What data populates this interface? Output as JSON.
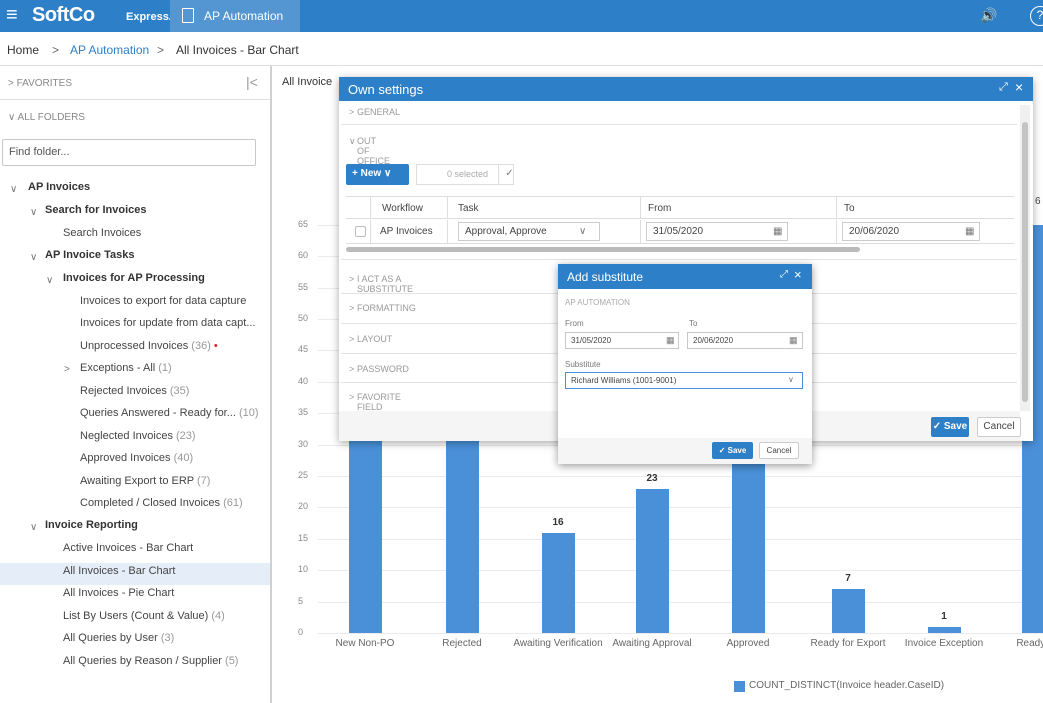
{
  "topbar": {
    "brand": "SoftCo",
    "brand_sub": "ExpressAP",
    "tab_label": "AP Automation",
    "hamburger_glyph": "≡",
    "speaker_glyph": "🔊",
    "help_glyph": "?"
  },
  "breadcrumb": [
    "Home",
    ">",
    "AP Automation",
    ">",
    "All Invoices - Bar Chart"
  ],
  "sidebar": {
    "favorites": "FAVORITES",
    "collapse_glyph": "|<",
    "all_folders": "ALL FOLDERS",
    "find_placeholder": "Find folder...",
    "tree": [
      {
        "label": "AP Invoices",
        "bold": true
      },
      {
        "label": "Search for Invoices",
        "bold": true
      },
      {
        "label": "Search Invoices"
      },
      {
        "label": "AP Invoice Tasks",
        "bold": true
      },
      {
        "label": "Invoices for AP Processing",
        "bold": true
      },
      {
        "label": "Invoices to export for data capture"
      },
      {
        "label": "Invoices for update from data capt..."
      },
      {
        "label": "Unprocessed Invoices",
        "count": "(36)",
        "dot": "•"
      },
      {
        "label": "Exceptions - All",
        "count": "(1)"
      },
      {
        "label": "Rejected Invoices",
        "count": "(35)"
      },
      {
        "label": "Queries Answered - Ready for...",
        "count": "(10)"
      },
      {
        "label": "Neglected Invoices",
        "count": "(23)"
      },
      {
        "label": "Approved Invoices",
        "count": "(40)"
      },
      {
        "label": "Awaiting Export to ERP",
        "count": "(7)"
      },
      {
        "label": "Completed / Closed Invoices",
        "count": "(61)"
      },
      {
        "label": "Invoice Reporting",
        "bold": true
      },
      {
        "label": "Active Invoices - Bar Chart"
      },
      {
        "label": "All Invoices - Bar Chart"
      },
      {
        "label": "All Invoices - Pie Chart"
      },
      {
        "label": "List By Users (Count & Value)",
        "count": "(4)"
      },
      {
        "label": "All Queries by User",
        "count": "(3)"
      },
      {
        "label": "All Queries by Reason / Supplier",
        "count": "(5)"
      }
    ]
  },
  "main_tab": "All Invoice",
  "chart_data": {
    "type": "bar",
    "categories": [
      "New Non-PO",
      "Rejected",
      "Awaiting Verification",
      "Awaiting Approval",
      "Approved",
      "Ready for Export",
      "Invoice Exception",
      "Ready for"
    ],
    "values": [
      null,
      null,
      16,
      23,
      null,
      7,
      1,
      null
    ],
    "visible_labels": [
      "",
      "",
      "16",
      "23",
      "",
      "7",
      "1",
      ""
    ],
    "yticks": [
      "0",
      "5",
      "10",
      "15",
      "20",
      "25",
      "30",
      "35",
      "40",
      "45",
      "50",
      "55",
      "60",
      "65"
    ],
    "ylim": [
      0,
      65
    ],
    "legend": "COUNT_DISTINCT(Invoice header.CaseID)",
    "edge_label": "6",
    "color": "#4a90d9"
  },
  "dialog": {
    "title": "Own settings",
    "expand_glyph": "⤢",
    "close_glyph": "×",
    "sections": {
      "general": "GENERAL",
      "out_of_office": "OUT OF OFFICE",
      "substitute": "I ACT AS A SUBSTITUTE",
      "formatting": "FORMATTING",
      "layout": "LAYOUT",
      "password": "PASSWORD",
      "favorite": "FAVORITE FIELD VALUES"
    },
    "new_button": "+ New",
    "selected": "0 selected",
    "check_glyph": "✓",
    "columns": [
      "Workflow",
      "Task",
      "From",
      "To"
    ],
    "row": {
      "workflow": "AP Invoices",
      "task": "Approval, Approve",
      "from": "31/05/2020",
      "to": "20/06/2020"
    },
    "save": "✓ Save",
    "cancel": "Cancel"
  },
  "substitute_dialog": {
    "title": "Add substitute",
    "section": "AP AUTOMATION",
    "from_label": "From",
    "to_label": "To",
    "from_value": "31/05/2020",
    "to_value": "20/06/2020",
    "substitute_label": "Substitute",
    "substitute_value": "Richard Williams (1001-9001)",
    "save": "✓ Save",
    "cancel": "Cancel"
  }
}
